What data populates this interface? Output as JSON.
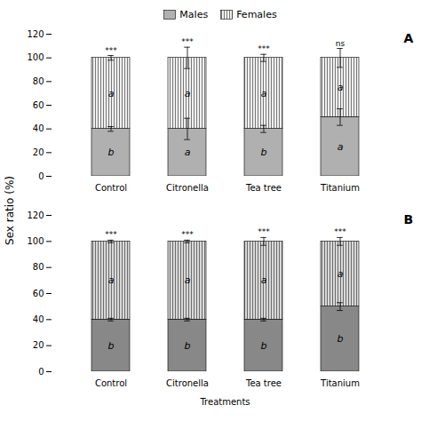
{
  "chart_data": [
    {
      "type": "bar",
      "stacked": true,
      "title": "A",
      "ylabel": "Sex ratio (%)",
      "legend": "top",
      "categories": [
        "Control",
        "Citronella",
        "Tea tree",
        "Titanium"
      ],
      "ylim": [
        0,
        120
      ],
      "yticks": [
        0,
        20,
        40,
        60,
        80,
        100,
        120
      ],
      "series": [
        {
          "name": "Males",
          "color": "#b0b0b0",
          "values": [
            40,
            40,
            40,
            50
          ],
          "errors": [
            2,
            9,
            3,
            7
          ],
          "letters": [
            "b",
            "a",
            "b",
            "a"
          ]
        },
        {
          "name": "Females",
          "color": "#efefef",
          "values": [
            60,
            60,
            60,
            50
          ],
          "letters": [
            "a",
            "a",
            "a",
            "a"
          ]
        }
      ],
      "total_errors": [
        2,
        9,
        3,
        8
      ],
      "significance": [
        "***",
        "***",
        "***",
        "ns"
      ]
    },
    {
      "type": "bar",
      "stacked": true,
      "title": "B",
      "xlabel": "Treatments",
      "categories": [
        "Control",
        "Citronella",
        "Tea tree",
        "Titanium"
      ],
      "ylim": [
        0,
        120
      ],
      "yticks": [
        0,
        20,
        40,
        60,
        80,
        100,
        120
      ],
      "series": [
        {
          "name": "Males",
          "color": "#888888",
          "values": [
            40,
            40,
            40,
            50
          ],
          "errors": [
            1,
            1,
            1,
            3
          ],
          "letters": [
            "b",
            "b",
            "b",
            "b"
          ]
        },
        {
          "name": "Females",
          "color": "#d8d8d8",
          "values": [
            60,
            60,
            60,
            50
          ],
          "letters": [
            "a",
            "a",
            "a",
            "a"
          ]
        }
      ],
      "total_errors": [
        1,
        1,
        3,
        3
      ],
      "significance": [
        "***",
        "***",
        "***",
        "***"
      ]
    }
  ]
}
